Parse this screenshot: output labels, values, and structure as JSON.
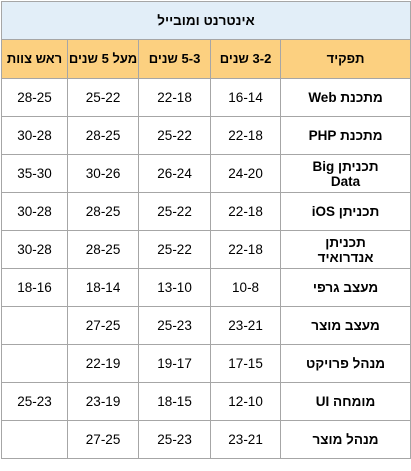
{
  "table": {
    "title": "אינטרנט ומובייל",
    "columns": [
      "תפקיד",
      "3-2 שנים",
      "5-3 שנים",
      "מעל 5 שנים",
      "ראש צוות"
    ],
    "rows": [
      {
        "role": "מתכנת Web",
        "y2_3": "16-14",
        "y3_5": "22-18",
        "over5": "25-22",
        "team_lead": "28-25"
      },
      {
        "role": "מתכנת PHP",
        "y2_3": "22-18",
        "y3_5": "25-22",
        "over5": "28-25",
        "team_lead": "30-28"
      },
      {
        "role": "תכניתן Big Data",
        "y2_3": "24-20",
        "y3_5": "26-24",
        "over5": "30-26",
        "team_lead": "35-30"
      },
      {
        "role": "תכניתן iOS",
        "y2_3": "22-18",
        "y3_5": "25-22",
        "over5": "28-25",
        "team_lead": "30-28"
      },
      {
        "role": "תכניתן אנדרואיד",
        "y2_3": "22-18",
        "y3_5": "25-22",
        "over5": "28-25",
        "team_lead": "30-28"
      },
      {
        "role": "מעצב גרפי",
        "y2_3": "10-8",
        "y3_5": "13-10",
        "over5": "18-14",
        "team_lead": "18-16"
      },
      {
        "role": "מעצב מוצר",
        "y2_3": "23-21",
        "y3_5": "25-23",
        "over5": "27-25",
        "team_lead": ""
      },
      {
        "role": "מנהל פרויקט",
        "y2_3": "17-15",
        "y3_5": "19-17",
        "over5": "22-19",
        "team_lead": ""
      },
      {
        "role": "מומחה UI",
        "y2_3": "12-10",
        "y3_5": "18-15",
        "over5": "23-19",
        "team_lead": "25-23"
      },
      {
        "role": "מנהל מוצר",
        "y2_3": "23-21",
        "y3_5": "25-23",
        "over5": "27-25",
        "team_lead": ""
      }
    ]
  },
  "colors": {
    "title_bg": "#e2eef8",
    "header_bg": "#fcd080",
    "border": "#a6a6a6"
  }
}
